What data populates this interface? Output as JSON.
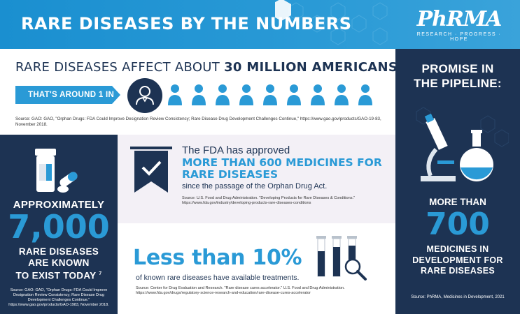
{
  "header": {
    "title": "RARE DISEASES BY THE NUMBERS",
    "logo_text": "PhRMA",
    "logo_tagline": "RESEARCH · PROGRESS · HOPE"
  },
  "affected": {
    "headline_prefix": "RARE DISEASES AFFECT ABOUT ",
    "headline_bold": "30 MILLION AMERICANS—",
    "ratio_text": "THAT'S AROUND 1 IN 10",
    "ratio_sup": "6",
    "source": "Source: GAO: GAO, \"Orphan Drugs: FDA Could Improve Designation Review Consistency; Rare Disease Drug Development Challenges Continue,\" https://www.gao.gov/products/GAO-19-83, November 2018."
  },
  "known": {
    "approx": "APPROXIMATELY",
    "number": "7,000",
    "label_line1": "RARE DISEASES",
    "label_line2": "ARE KNOWN",
    "label_line3": "TO EXIST TODAY",
    "label_sup": "7",
    "source": "Source: GAO: GAO, \"Orphan Drugs: FDA Could Improve Designation Review Consistency; Rare Disease Drug Development Challenges Continue.\" https://www.gao.gov/products/GAO-1983, November 2018."
  },
  "approved": {
    "line1": "The FDA has approved",
    "big_line1": "MORE THAN 600 MEDICINES FOR",
    "big_line2": "RARE DISEASES",
    "line3": "since the passage of the Orphan Drug Act.",
    "source": "Source: U.S. Food and Drug Administration. \"Developing Products for Rare Diseases & Conditions.\" https://www.fda.gov/industry/developing-products-rare-diseases-conditions"
  },
  "treatments": {
    "big": "Less than 10%",
    "sub": "of known rare diseases have available treatments.",
    "source": "Source: Center for Drug Evaluation and Research. \"Rare disease cures accelerator.\" U.S. Food and Drug Administration. https://www.fda.gov/drugs/regulatory-science-research-and-education/rare-disease-cures-accelerator"
  },
  "pipeline": {
    "title_line1": "PROMISE IN",
    "title_line2": "THE PIPELINE:",
    "more_than": "MORE THAN",
    "number": "700",
    "label_line1": "MEDICINES IN",
    "label_line2": "DEVELOPMENT FOR",
    "label_line3": "RARE DISEASES",
    "source": "Source: PhRMA, Medicines in Development, 2021"
  },
  "colors": {
    "brand_blue": "#2a9ad6",
    "navy": "#1d3353",
    "lavender": "#f3f0f6"
  },
  "icons": [
    "person-icon",
    "pill-bottle-icon",
    "ribbon-check-icon",
    "test-tubes-icon",
    "magnifier-icon",
    "microscope-icon",
    "flask-icon"
  ]
}
